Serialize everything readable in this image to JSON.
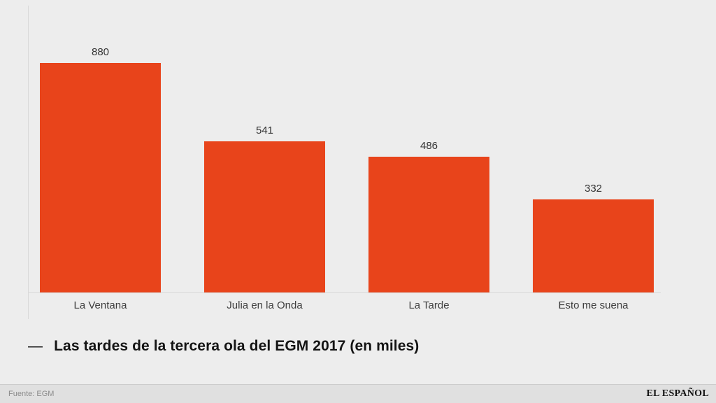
{
  "chart_data": {
    "type": "bar",
    "categories": [
      "La Ventana",
      "Julia en la Onda",
      "La Tarde",
      "Esto me suena"
    ],
    "values": [
      880,
      541,
      486,
      332
    ],
    "value_labels": [
      "880",
      "541",
      "486",
      "332"
    ],
    "title": "Las tardes de la tercera ola del EGM 2017 (en miles)",
    "caption_prefix": "—",
    "bar_color": "#e8441b",
    "ylim": [
      0,
      880
    ],
    "grid": false,
    "legend": "none"
  },
  "footer": {
    "source": "Fuente: EGM",
    "brand": "EL ESPAÑOL"
  }
}
